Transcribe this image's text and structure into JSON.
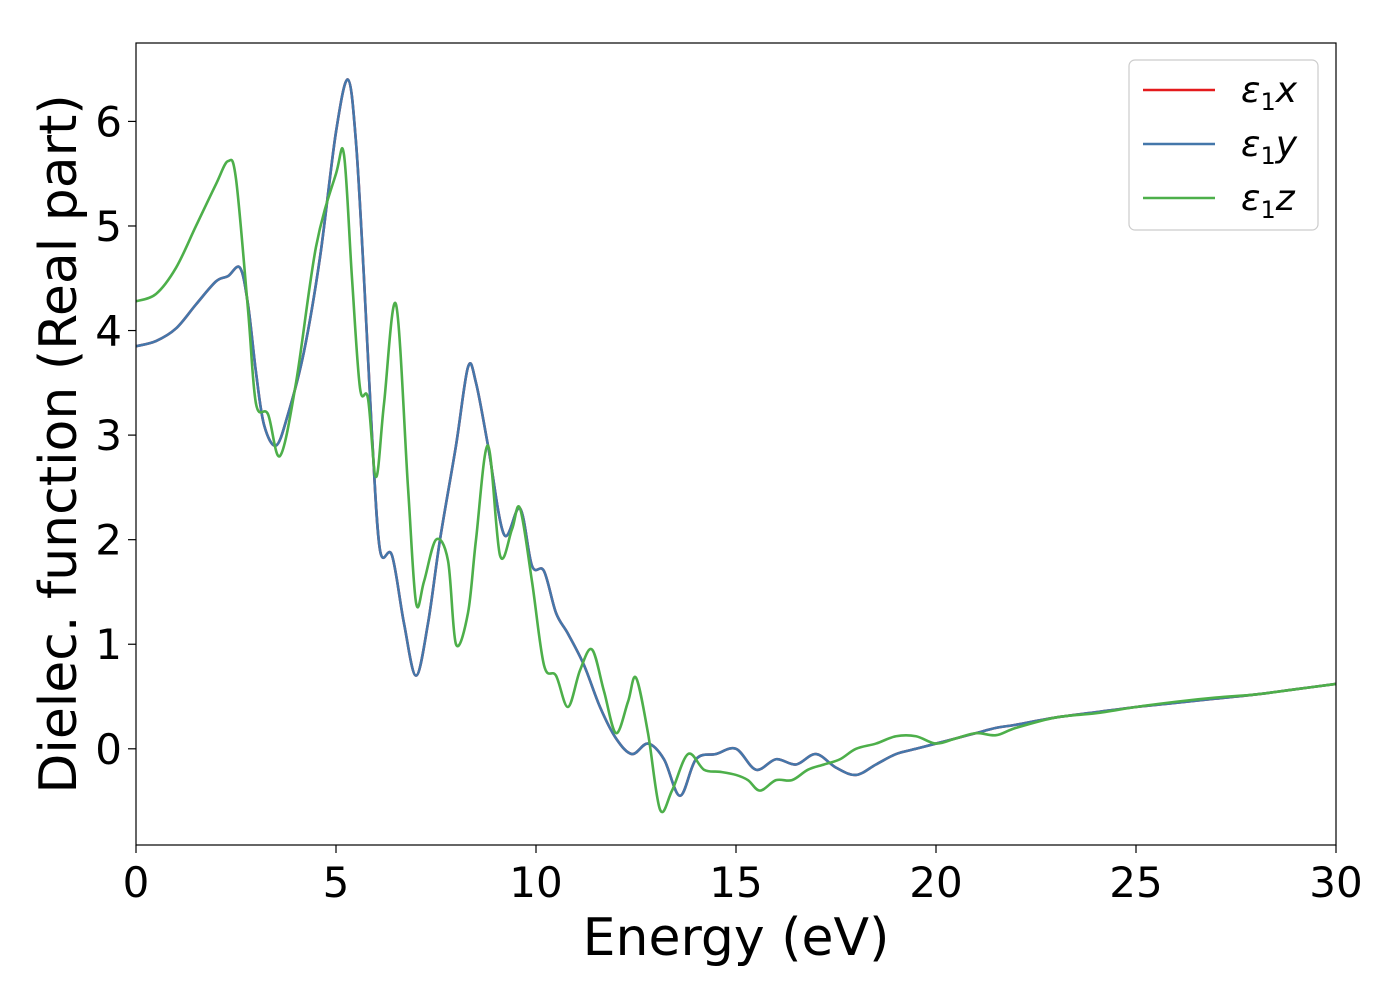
{
  "chart_data": {
    "type": "line",
    "title": "",
    "xlabel": "Energy (eV)",
    "ylabel": "Dielec. function (Real part)",
    "xlim": [
      0,
      30
    ],
    "ylim": [
      -0.92,
      6.75
    ],
    "xticks": [
      0,
      5,
      10,
      15,
      20,
      25,
      30
    ],
    "yticks": [
      0,
      1,
      2,
      3,
      4,
      5,
      6
    ],
    "grid": false,
    "legend_position": "top-right",
    "series": [
      {
        "name": "ε1x",
        "legend_base": "ε",
        "legend_sub": "1",
        "legend_var": "x",
        "color": "#e41a1c",
        "x": [
          0,
          0.5,
          1,
          1.5,
          2,
          2.3,
          2.6,
          2.8,
          3,
          3.2,
          3.5,
          3.8,
          4.2,
          4.6,
          5,
          5.3,
          5.5,
          5.7,
          5.9,
          6.1,
          6.4,
          6.7,
          7,
          7.3,
          7.6,
          8,
          8.3,
          8.5,
          8.8,
          9.2,
          9.6,
          9.9,
          10.2,
          10.5,
          10.8,
          11.2,
          11.6,
          12,
          12.4,
          12.8,
          13.2,
          13.6,
          14,
          14.5,
          15,
          15.5,
          16,
          16.5,
          17,
          17.5,
          18,
          18.5,
          19,
          19.5,
          20,
          20.5,
          21,
          21.5,
          22,
          23,
          24,
          25,
          26,
          27,
          28,
          29,
          30
        ],
        "y": [
          3.85,
          3.9,
          4.02,
          4.25,
          4.47,
          4.52,
          4.6,
          4.25,
          3.6,
          3.1,
          2.9,
          3.2,
          3.8,
          4.7,
          5.9,
          6.4,
          5.8,
          4.5,
          3.0,
          1.9,
          1.85,
          1.2,
          0.7,
          1.2,
          2.0,
          2.9,
          3.65,
          3.5,
          2.9,
          2.05,
          2.3,
          1.75,
          1.7,
          1.3,
          1.1,
          0.8,
          0.4,
          0.1,
          -0.05,
          0.05,
          -0.1,
          -0.45,
          -0.1,
          -0.05,
          0.0,
          -0.2,
          -0.1,
          -0.15,
          -0.05,
          -0.18,
          -0.25,
          -0.15,
          -0.05,
          0.0,
          0.05,
          0.1,
          0.15,
          0.2,
          0.23,
          0.3,
          0.35,
          0.4,
          0.44,
          0.48,
          0.52,
          0.57,
          0.62
        ]
      },
      {
        "name": "ε1y",
        "legend_base": "ε",
        "legend_sub": "1",
        "legend_var": "y",
        "color": "#4477aa",
        "x": [
          0,
          0.5,
          1,
          1.5,
          2,
          2.3,
          2.6,
          2.8,
          3,
          3.2,
          3.5,
          3.8,
          4.2,
          4.6,
          5,
          5.3,
          5.5,
          5.7,
          5.9,
          6.1,
          6.4,
          6.7,
          7,
          7.3,
          7.6,
          8,
          8.3,
          8.5,
          8.8,
          9.2,
          9.6,
          9.9,
          10.2,
          10.5,
          10.8,
          11.2,
          11.6,
          12,
          12.4,
          12.8,
          13.2,
          13.6,
          14,
          14.5,
          15,
          15.5,
          16,
          16.5,
          17,
          17.5,
          18,
          18.5,
          19,
          19.5,
          20,
          20.5,
          21,
          21.5,
          22,
          23,
          24,
          25,
          26,
          27,
          28,
          29,
          30
        ],
        "y": [
          3.85,
          3.9,
          4.02,
          4.25,
          4.47,
          4.52,
          4.6,
          4.25,
          3.6,
          3.1,
          2.9,
          3.2,
          3.8,
          4.7,
          5.9,
          6.4,
          5.8,
          4.5,
          3.0,
          1.9,
          1.85,
          1.2,
          0.7,
          1.2,
          2.0,
          2.9,
          3.65,
          3.5,
          2.9,
          2.05,
          2.3,
          1.75,
          1.7,
          1.3,
          1.1,
          0.8,
          0.4,
          0.1,
          -0.05,
          0.05,
          -0.1,
          -0.45,
          -0.1,
          -0.05,
          0.0,
          -0.2,
          -0.1,
          -0.15,
          -0.05,
          -0.18,
          -0.25,
          -0.15,
          -0.05,
          0.0,
          0.05,
          0.1,
          0.15,
          0.2,
          0.23,
          0.3,
          0.35,
          0.4,
          0.44,
          0.48,
          0.52,
          0.57,
          0.62
        ]
      },
      {
        "name": "ε1z",
        "legend_base": "ε",
        "legend_sub": "1",
        "legend_var": "z",
        "color": "#4daf4a",
        "x": [
          0,
          0.5,
          1,
          1.5,
          2,
          2.3,
          2.5,
          2.8,
          3,
          3.3,
          3.6,
          4,
          4.5,
          5,
          5.2,
          5.4,
          5.6,
          5.8,
          6,
          6.2,
          6.5,
          6.8,
          7,
          7.2,
          7.5,
          7.8,
          8,
          8.3,
          8.5,
          8.8,
          9.1,
          9.4,
          9.6,
          9.9,
          10.2,
          10.5,
          10.8,
          11.1,
          11.4,
          11.7,
          12,
          12.3,
          12.5,
          12.8,
          13.1,
          13.4,
          13.8,
          14.2,
          14.6,
          15,
          15.3,
          15.6,
          16,
          16.4,
          16.8,
          17.2,
          17.6,
          18,
          18.5,
          19,
          19.5,
          20,
          20.5,
          21,
          21.5,
          22,
          23,
          24,
          25,
          26,
          27,
          28,
          29,
          30
        ],
        "y": [
          4.28,
          4.35,
          4.6,
          5.0,
          5.4,
          5.62,
          5.45,
          4.2,
          3.3,
          3.2,
          2.8,
          3.5,
          4.8,
          5.5,
          5.68,
          4.5,
          3.45,
          3.35,
          2.6,
          3.3,
          4.25,
          2.5,
          1.4,
          1.6,
          2.0,
          1.8,
          1.0,
          1.3,
          2.0,
          2.9,
          1.85,
          2.1,
          2.3,
          1.6,
          0.8,
          0.7,
          0.4,
          0.75,
          0.95,
          0.55,
          0.15,
          0.45,
          0.68,
          0.15,
          -0.58,
          -0.4,
          -0.05,
          -0.2,
          -0.22,
          -0.25,
          -0.3,
          -0.4,
          -0.3,
          -0.3,
          -0.2,
          -0.15,
          -0.1,
          0.0,
          0.05,
          0.12,
          0.12,
          0.05,
          0.1,
          0.15,
          0.13,
          0.2,
          0.3,
          0.34,
          0.4,
          0.45,
          0.49,
          0.52,
          0.57,
          0.62
        ]
      }
    ]
  }
}
